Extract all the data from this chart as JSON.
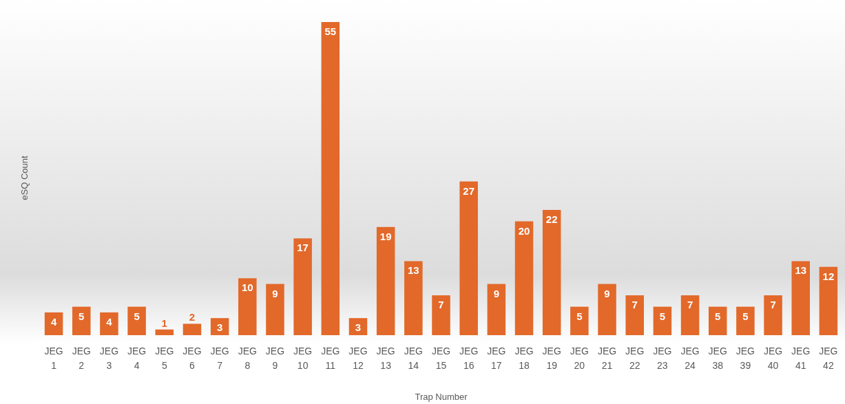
{
  "chart_data": {
    "type": "bar",
    "xlabel": "Trap Number",
    "ylabel": "eSQ Count",
    "categories": [
      "JEG 1",
      "JEG 2",
      "JEG 3",
      "JEG 4",
      "JEG 5",
      "JEG 6",
      "JEG 7",
      "JEG 8",
      "JEG 9",
      "JEG 10",
      "JEG 11",
      "JEG 12",
      "JEG 13",
      "JEG 14",
      "JEG 15",
      "JEG 16",
      "JEG 17",
      "JEG 18",
      "JEG 19",
      "JEG 20",
      "JEG 21",
      "JEG 22",
      "JEG 23",
      "JEG 24",
      "JEG 38",
      "JEG 39",
      "JEG 40",
      "JEG 41",
      "JEG 42"
    ],
    "values": [
      4,
      5,
      4,
      5,
      1,
      2,
      3,
      10,
      9,
      17,
      55,
      3,
      19,
      13,
      7,
      27,
      9,
      20,
      22,
      5,
      9,
      7,
      5,
      7,
      5,
      5,
      7,
      13,
      12
    ],
    "color": "#e2692a",
    "data_labels": true
  }
}
